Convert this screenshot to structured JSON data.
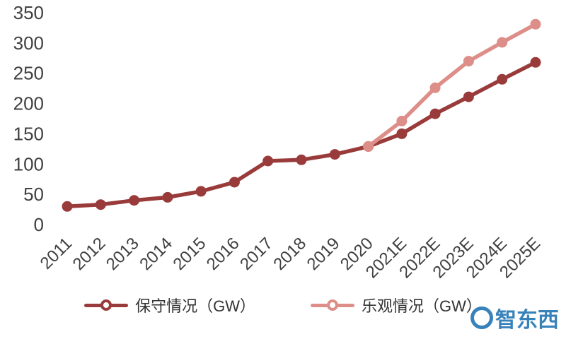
{
  "chart_data": {
    "type": "line",
    "title": "",
    "categories": [
      "2011",
      "2012",
      "2013",
      "2014",
      "2015",
      "2016",
      "2017",
      "2018",
      "2019",
      "2020",
      "2021E",
      "2022E",
      "2023E",
      "2024E",
      "2025E"
    ],
    "series": [
      {
        "name": "保守情况（GW）",
        "color": "#9a3b3b",
        "values": [
          30,
          33,
          40,
          45,
          55,
          70,
          105,
          107,
          116,
          129,
          150,
          183,
          211,
          240,
          268
        ]
      },
      {
        "name": "乐观情况（GW）",
        "color": "#dd8e88",
        "values": [
          null,
          null,
          null,
          null,
          null,
          null,
          null,
          null,
          null,
          129,
          171,
          226,
          270,
          301,
          331
        ]
      }
    ],
    "xlabel": "",
    "ylabel": "",
    "ylim": [
      0,
      350
    ],
    "yticks": [
      0,
      50,
      100,
      150,
      200,
      250,
      300,
      350
    ],
    "grid": false,
    "legend_position": "bottom",
    "x_tick_rotation": -45
  },
  "legend": {
    "items": [
      {
        "label": "保守情况（GW）",
        "color": "#9a3b3b"
      },
      {
        "label": "乐观情况（GW）",
        "color": "#dd8e88"
      }
    ]
  },
  "watermark": {
    "text": "智东西",
    "color": "#2878b5"
  },
  "axis": {
    "text_color": "#404040"
  }
}
